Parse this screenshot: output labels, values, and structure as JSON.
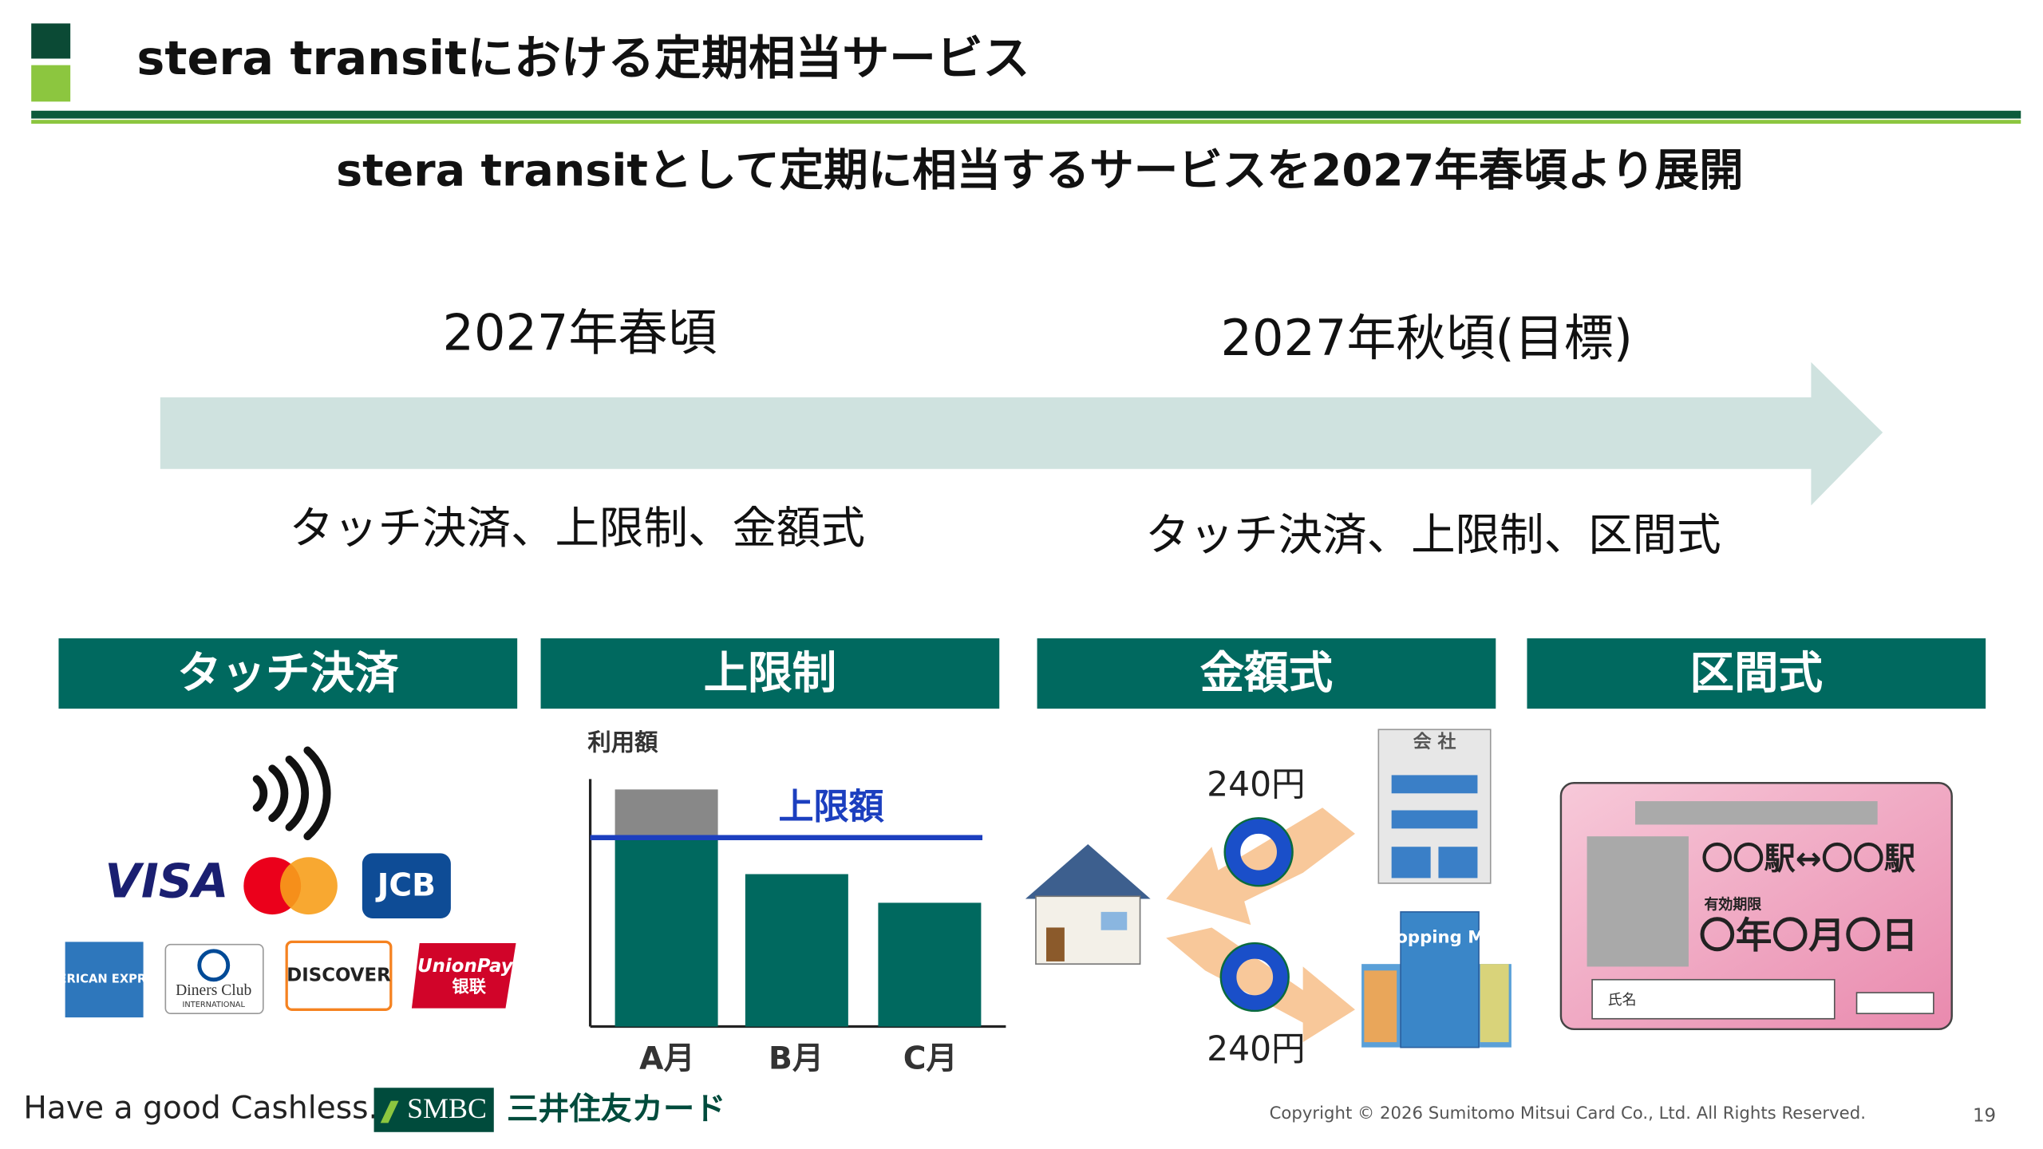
{
  "header": {
    "title": "stera transitにおける定期相当サービス"
  },
  "headline": "stera transitとして定期に相当するサービスを2027年春頃より展開",
  "timeline": {
    "phases": [
      {
        "period": "2027年春頃",
        "features": "タッチ決済、上限制、金額式"
      },
      {
        "period": "2027年秋頃(目標)",
        "features": "タッチ決済、上限制、区間式"
      }
    ]
  },
  "sections": [
    "タッチ決済",
    "上限制",
    "金額式",
    "区間式"
  ],
  "brands": [
    "VISA",
    "JCB",
    "AMERICAN EXPRESS",
    "Diners Club",
    "INTERNATIONAL",
    "DISCOVER",
    "UnionPay",
    "银联"
  ],
  "cap_chart": {
    "y_label": "利用額",
    "limit_label": "上限額",
    "months": [
      "A月",
      "B月",
      "C月"
    ]
  },
  "fare": {
    "amounts": [
      "240円",
      "240円"
    ],
    "office": "会 社",
    "mall": "Shopping Mall"
  },
  "pass_card": {
    "route": "〇〇駅↔〇〇駅",
    "validity_label": "有効期限",
    "validity": "〇年〇月〇日",
    "name_label": "氏名"
  },
  "footer": {
    "tagline": "Have a good Cashless.",
    "bank": "SMBC",
    "company": "三井住友カード",
    "copyright": "Copyright © 2026 Sumitomo Mitsui Card Co., Ltd. All Rights Reserved.",
    "page": "19"
  }
}
